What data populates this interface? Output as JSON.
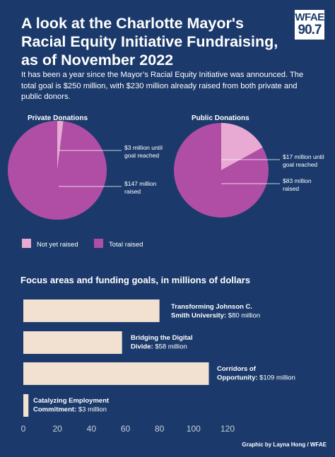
{
  "header": {
    "title": "A look at the Charlotte Mayor's Racial Equity Initiative Fundraising, as of November 2022",
    "subtitle": "It has been a year since the Mayor’s Racial Equity Initiative was announced. The total goal is $250 million, with $230 million already raised from both private and public donors.",
    "logo_line1": "WFAE",
    "logo_line2": "90.7"
  },
  "credit": "Graphic by Layna Hong  / WFAE",
  "colors": {
    "background": "#1b3a6b",
    "not_yet_raised": "#e8a9d3",
    "total_raised": "#b04ea5",
    "bar": "#f2e0d0"
  },
  "chart_data": [
    {
      "type": "pie",
      "title": "Private Donations",
      "slices": [
        {
          "label": "Not yet raised",
          "value": 3,
          "annotation": "$3 million until goal reached"
        },
        {
          "label": "Total raised",
          "value": 147,
          "annotation": "$147 million raised"
        }
      ]
    },
    {
      "type": "pie",
      "title": "Public Donations",
      "slices": [
        {
          "label": "Not yet raised",
          "value": 17,
          "annotation": "$17 million until goal reached"
        },
        {
          "label": "Total raised",
          "value": 83,
          "annotation": "$83 million raised"
        }
      ]
    },
    {
      "type": "bar",
      "orientation": "horizontal",
      "title": "Focus areas and funding goals, in millions of dollars",
      "categories": [
        {
          "name": "Transforming Johnson C. Smith University:",
          "amount": "$80 million"
        },
        {
          "name": "Bridging the Digital Divide:",
          "amount": "$58 million"
        },
        {
          "name": "Corridors of Opportunity:",
          "amount": "$109 million"
        },
        {
          "name": "Catalyzing Employment Commitment:",
          "amount": "$3 million"
        }
      ],
      "values": [
        80,
        58,
        109,
        3
      ],
      "xlim": [
        0,
        120
      ],
      "xticks": [
        "0",
        "20",
        "40",
        "60",
        "80",
        "100",
        "120"
      ],
      "grid": false
    }
  ],
  "legend": {
    "items": [
      "Not yet raised",
      "Total raised"
    ]
  }
}
